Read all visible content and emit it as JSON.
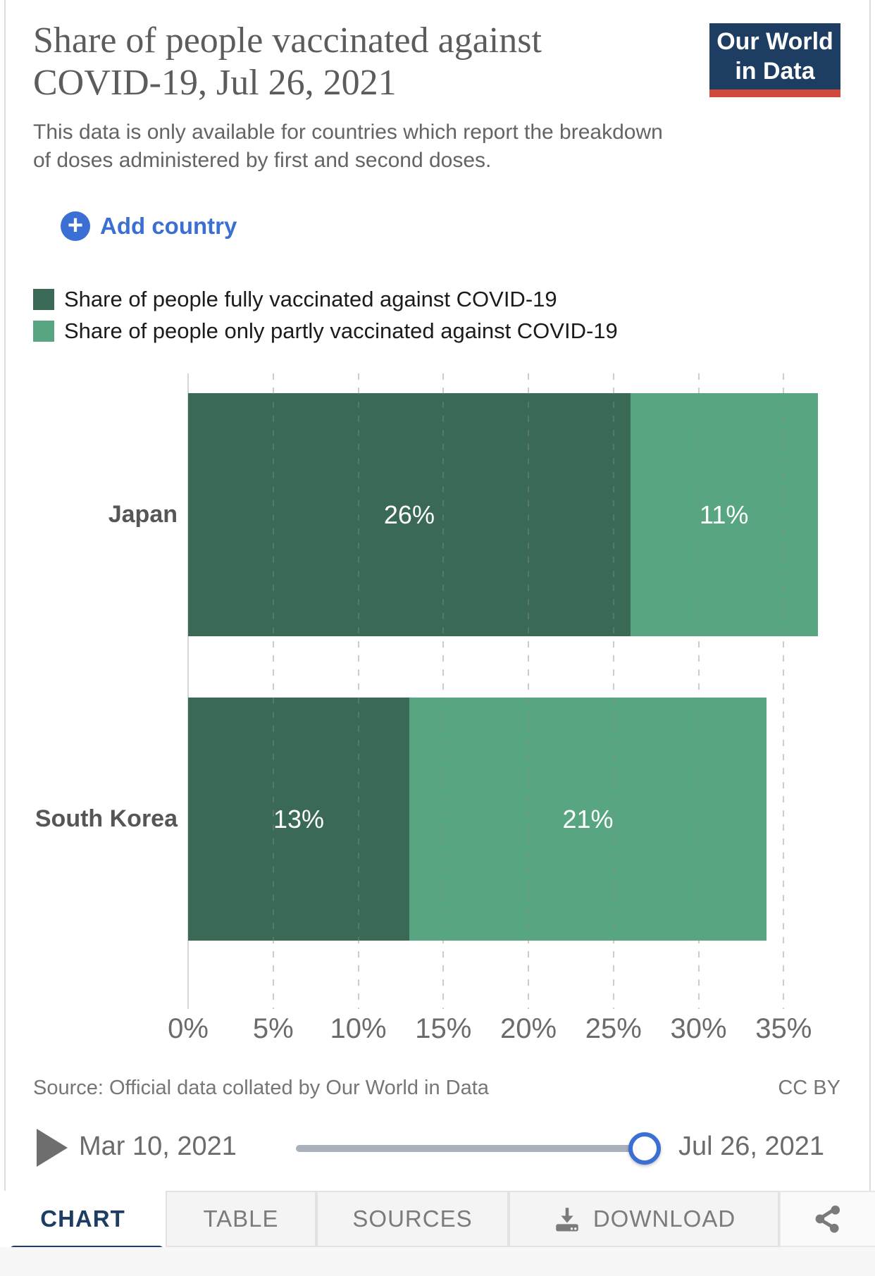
{
  "header": {
    "title": "Share of people vaccinated against COVID-19, Jul 26, 2021",
    "subtitle": "This data is only available for countries which report the breakdown of doses administered by first and second doses.",
    "logo": {
      "line1": "Our World",
      "line2": "in Data",
      "bg_color": "#1d3d63",
      "accent_color": "#d0493a",
      "text_color": "#ffffff"
    }
  },
  "controls": {
    "add_country": {
      "label": "Add country",
      "icon": "plus-circle-icon",
      "color": "#3b6fd3"
    }
  },
  "legend": {
    "items": [
      {
        "label": "Share of people fully vaccinated against COVID-19",
        "color": "#3a6a56"
      },
      {
        "label": "Share of people only partly vaccinated against COVID-19",
        "color": "#57a681"
      }
    ]
  },
  "chart_data": {
    "type": "bar",
    "orientation": "horizontal",
    "stacked": true,
    "grid": "dashed-vertical",
    "categories": [
      "Japan",
      "South Korea"
    ],
    "series": [
      {
        "name": "Share of people fully vaccinated against COVID-19",
        "color": "#3a6a56",
        "values": [
          26,
          13
        ],
        "labels": [
          "26%",
          "13%"
        ]
      },
      {
        "name": "Share of people only partly vaccinated against COVID-19",
        "color": "#57a681",
        "values": [
          11,
          21
        ],
        "labels": [
          "11%",
          "21%"
        ]
      }
    ],
    "totals": [
      37,
      34
    ],
    "x_ticks": [
      "0%",
      "5%",
      "10%",
      "15%",
      "20%",
      "25%",
      "30%",
      "35%"
    ],
    "xlim": [
      0,
      37.5
    ],
    "value_label_color": "#ffffff"
  },
  "attribution": {
    "source": "Source: Official data collated by Our World in Data",
    "license": "CC BY"
  },
  "timeline": {
    "play_icon": "play-icon",
    "start_date": "Mar 10, 2021",
    "end_date": "Jul 26, 2021",
    "handle_position": "end",
    "track_color": "#a9b1bd",
    "handle_ring_color": "#3b6fd3"
  },
  "footer": {
    "tabs": [
      {
        "label": "CHART",
        "active": true
      },
      {
        "label": "TABLE",
        "active": false
      },
      {
        "label": "SOURCES",
        "active": false
      },
      {
        "label": "DOWNLOAD",
        "active": false,
        "icon": "download-icon"
      }
    ],
    "share_icon": "share-nodes-icon",
    "active_color": "#1d3d63"
  }
}
